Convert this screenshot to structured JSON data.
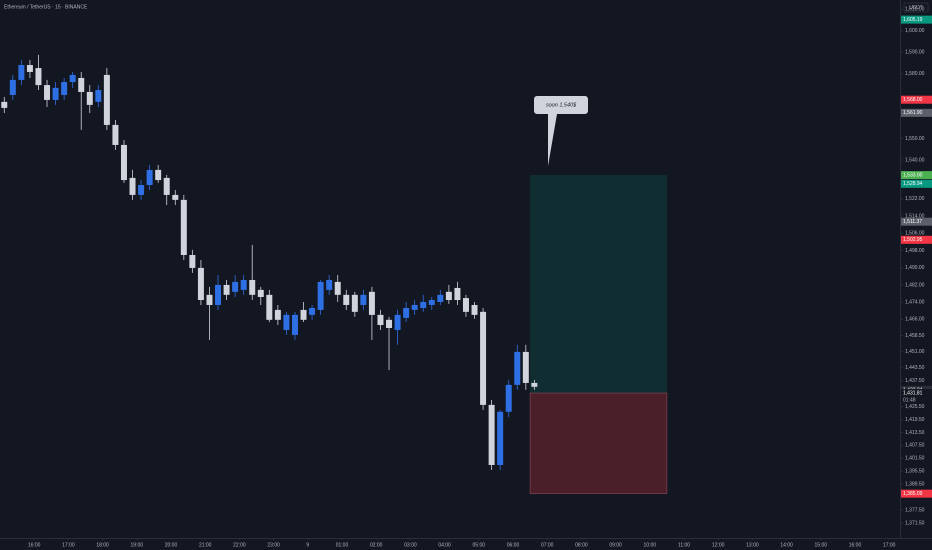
{
  "chart_data": {
    "type": "candlestick",
    "title": "Ethereum / TetherUS · 15 · BINANCE",
    "currency": "USDT",
    "annotation": "soon 1,540$",
    "countdown": "01:48",
    "up_color": "#2f6fe4",
    "down_color": "#d1d4dc",
    "grid": false,
    "x": [
      0.125,
      0.375,
      0.625,
      0.875,
      1.125,
      1.375,
      1.625,
      1.875,
      2.125,
      2.375,
      2.625,
      2.875,
      3.125,
      3.375,
      3.625,
      3.875,
      4.125,
      4.375,
      4.625,
      4.875,
      5.125,
      5.375,
      5.625,
      5.875,
      6.125,
      6.375,
      6.625,
      6.875,
      7.125,
      7.375,
      7.625,
      7.875,
      8.125,
      8.375,
      8.625,
      8.875,
      9.125,
      9.375,
      9.625,
      9.875,
      10.125,
      10.375,
      10.625,
      10.875,
      11.125,
      11.375,
      11.625,
      11.875,
      12.125,
      12.375,
      12.625,
      12.875,
      13.125,
      13.375,
      13.625,
      13.875,
      14.125,
      14.375,
      14.625,
      14.875,
      15.125,
      15.375,
      15.625
    ],
    "open": [
      1567.0,
      1570.2,
      1577.2,
      1584.1,
      1582.7,
      1574.8,
      1567.9,
      1570.2,
      1576.2,
      1578.1,
      1571.6,
      1567.0,
      1579.5,
      1556.3,
      1547.0,
      1531.7,
      1523.8,
      1528.4,
      1535.4,
      1531.7,
      1523.8,
      1521.5,
      1495.9,
      1489.9,
      1477.4,
      1472.7,
      1482.0,
      1478.8,
      1479.7,
      1484.3,
      1479.7,
      1477.4,
      1470.4,
      1461.1,
      1458.8,
      1470.4,
      1468.1,
      1470.4,
      1479.7,
      1483.4,
      1477.4,
      1477.4,
      1472.7,
      1478.8,
      1468.1,
      1465.8,
      1461.1,
      1466.7,
      1470.4,
      1471.3,
      1472.7,
      1474.1,
      1478.8,
      1480.6,
      1475.9,
      1472.7,
      1469.5,
      1426.3,
      1398.4,
      1423.1,
      1435.6,
      1450.9,
      1436.5
    ],
    "high": [
      1569.3,
      1579.5,
      1586.4,
      1586.4,
      1588.8,
      1577.2,
      1576.2,
      1578.1,
      1580.9,
      1580.9,
      1574.8,
      1574.8,
      1582.7,
      1558.6,
      1549.3,
      1535.4,
      1530.7,
      1537.7,
      1537.7,
      1533.1,
      1526.1,
      1523.8,
      1498.3,
      1493.6,
      1481.1,
      1486.6,
      1484.3,
      1486.6,
      1486.6,
      1500.6,
      1481.1,
      1479.7,
      1472.7,
      1469.5,
      1469.5,
      1474.1,
      1472.7,
      1484.3,
      1486.6,
      1486.6,
      1479.7,
      1478.8,
      1479.7,
      1481.1,
      1470.4,
      1467.2,
      1470.4,
      1474.1,
      1475.0,
      1477.4,
      1476.4,
      1479.7,
      1482.0,
      1483.4,
      1477.4,
      1474.1,
      1471.3,
      1428.6,
      1424.0,
      1437.9,
      1454.2,
      1454.2,
      1437.9
    ],
    "low": [
      1561.8,
      1567.9,
      1574.8,
      1578.1,
      1572.5,
      1564.6,
      1565.6,
      1567.9,
      1573.5,
      1554.0,
      1561.8,
      1564.6,
      1554.0,
      1544.7,
      1529.4,
      1521.5,
      1521.5,
      1526.1,
      1529.4,
      1519.1,
      1519.1,
      1493.6,
      1487.6,
      1472.7,
      1456.5,
      1470.4,
      1475.0,
      1476.4,
      1477.4,
      1475.0,
      1472.7,
      1464.8,
      1463.4,
      1458.8,
      1456.5,
      1464.8,
      1465.8,
      1468.1,
      1477.4,
      1474.1,
      1470.4,
      1467.2,
      1470.4,
      1456.5,
      1461.1,
      1442.5,
      1454.2,
      1464.8,
      1468.1,
      1469.5,
      1470.4,
      1472.7,
      1473.2,
      1472.7,
      1467.2,
      1466.3,
      1424.0,
      1396.1,
      1396.1,
      1420.7,
      1433.3,
      1433.3,
      1433.3
    ],
    "close": [
      1564.2,
      1577.2,
      1584.1,
      1580.9,
      1574.8,
      1567.9,
      1573.5,
      1576.2,
      1579.5,
      1571.6,
      1565.6,
      1572.5,
      1556.3,
      1547.0,
      1530.7,
      1523.8,
      1528.4,
      1535.4,
      1530.7,
      1523.8,
      1521.5,
      1495.9,
      1489.9,
      1475.0,
      1472.7,
      1482.0,
      1477.4,
      1483.4,
      1484.3,
      1477.4,
      1476.4,
      1465.8,
      1465.8,
      1468.1,
      1468.1,
      1465.8,
      1471.3,
      1483.4,
      1484.3,
      1477.4,
      1472.7,
      1469.5,
      1477.4,
      1468.1,
      1463.4,
      1462.0,
      1468.1,
      1471.3,
      1472.7,
      1474.1,
      1475.0,
      1477.4,
      1475.0,
      1475.0,
      1469.5,
      1468.1,
      1426.3,
      1398.4,
      1423.1,
      1435.6,
      1450.9,
      1436.5,
      1434.7
    ],
    "xlim": [
      0,
      26.316
    ],
    "ylim": [
      1364.5,
      1614.3
    ],
    "xticks": [
      {
        "value": 1,
        "label": "16:00"
      },
      {
        "value": 2,
        "label": "17:00"
      },
      {
        "value": 3,
        "label": "18:00"
      },
      {
        "value": 4,
        "label": "19:00"
      },
      {
        "value": 5,
        "label": "20:00"
      },
      {
        "value": 6,
        "label": "21:00"
      },
      {
        "value": 7,
        "label": "22:00"
      },
      {
        "value": 8,
        "label": "23:00"
      },
      9,
      {
        "value": 10,
        "label": "01:00"
      },
      {
        "value": 11,
        "label": "02:00"
      },
      {
        "value": 12,
        "label": "03:00"
      },
      {
        "value": 13,
        "label": "04:00"
      },
      {
        "value": 14,
        "label": "05:00"
      },
      {
        "value": 15,
        "label": "06:00"
      },
      {
        "value": 16,
        "label": "07:00"
      },
      {
        "value": 17,
        "label": "08:00"
      },
      {
        "value": 18,
        "label": "09:00"
      },
      {
        "value": 19,
        "label": "10:00"
      },
      {
        "value": 20,
        "label": "11:00"
      },
      {
        "value": 21,
        "label": "12:00"
      },
      {
        "value": 22,
        "label": "13:00"
      },
      {
        "value": 23,
        "label": "14:00"
      },
      {
        "value": 24,
        "label": "15:00"
      },
      {
        "value": 25,
        "label": "16:00"
      },
      {
        "value": 26,
        "label": "17:00"
      }
    ],
    "yticks": [
      {
        "value": 1610,
        "label": "1,610.00"
      },
      {
        "value": 1600,
        "label": "1,600.00"
      },
      {
        "value": 1590,
        "label": "1,590.00"
      },
      {
        "value": 1580,
        "label": "1,580.00"
      },
      {
        "value": 1550,
        "label": "1,550.00"
      },
      {
        "value": 1540,
        "label": "1,540.00"
      },
      {
        "value": 1522,
        "label": "1,522.00"
      },
      {
        "value": 1514,
        "label": "1,514.00"
      },
      {
        "value": 1506,
        "label": "1,506.00"
      },
      {
        "value": 1498,
        "label": "1,498.00"
      },
      {
        "value": 1490,
        "label": "1,490.00"
      },
      {
        "value": 1482,
        "label": "1,482.00"
      },
      {
        "value": 1474,
        "label": "1,474.00"
      },
      {
        "value": 1466,
        "label": "1,466.00"
      },
      {
        "value": 1458.5,
        "label": "1,458.50"
      },
      {
        "value": 1451,
        "label": "1,451.00"
      },
      {
        "value": 1443.5,
        "label": "1,443.50"
      },
      {
        "value": 1437.5,
        "label": "1,437.50"
      },
      {
        "value": 1425.5,
        "label": "1,425.50"
      },
      {
        "value": 1419.5,
        "label": "1,419.50"
      },
      {
        "value": 1413.5,
        "label": "1,413.50"
      },
      {
        "value": 1407.5,
        "label": "1,407.50"
      },
      {
        "value": 1401.5,
        "label": "1,401.50"
      },
      {
        "value": 1395.5,
        "label": "1,395.50"
      },
      {
        "value": 1389.5,
        "label": "1,389.50"
      },
      {
        "value": 1377.5,
        "label": "1,377.50"
      },
      {
        "value": 1371.5,
        "label": "1,371.50"
      }
    ],
    "price_labels": [
      {
        "value": 1605.19,
        "label": "1,605.19",
        "color": "#089981"
      },
      {
        "value": 1568.0,
        "label": "1,568.00",
        "color": "#f23645"
      },
      {
        "value": 1561.9,
        "label": "1,561.90",
        "color": "#5d606b"
      },
      {
        "value": 1528.94,
        "label": "1,528.94",
        "color": "#089981"
      },
      {
        "value": 1511.37,
        "label": "1,511.37",
        "color": "#5d606b"
      },
      {
        "value": 1502.95,
        "label": "1,502.95",
        "color": "#f23645"
      },
      {
        "value": 1433.24,
        "label": "1,433.24",
        "color": "#2a2e39"
      }
    ],
    "position": {
      "start": 15.5,
      "end": 19.5,
      "target": {
        "value": 1533.0,
        "label": "1,533.00"
      },
      "entry": {
        "value": 1431.81,
        "label": "1,431.81"
      },
      "stop": {
        "value": 1385.09,
        "label": "1,385.09"
      }
    }
  }
}
